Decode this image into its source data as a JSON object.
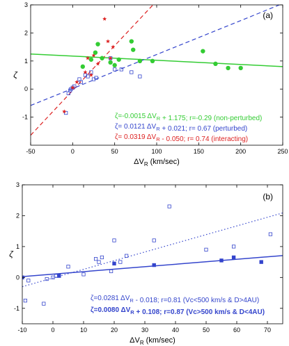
{
  "chart_data": [
    {
      "type": "scatter",
      "panel_label": "(a)",
      "xlabel": "ΔV",
      "xlabel_sub": "R",
      "xlabel_unit": " (km/sec)",
      "ylabel": "ζ",
      "xlim": [
        -50,
        250
      ],
      "ylim": [
        -2,
        3
      ],
      "xticks": [
        -50,
        0,
        50,
        100,
        150,
        200,
        250
      ],
      "yticks": [
        -1,
        0,
        1,
        2,
        3
      ],
      "series": [
        {
          "marker": "open-square",
          "color": "#3344cc",
          "points": [
            [
              -8,
              -0.85
            ],
            [
              -5,
              -0.15
            ],
            [
              -3,
              -0.05
            ],
            [
              -2,
              0.0
            ],
            [
              0,
              0.05
            ],
            [
              2,
              0.1
            ],
            [
              8,
              0.35
            ],
            [
              10,
              0.25
            ],
            [
              15,
              0.5
            ],
            [
              18,
              0.45
            ],
            [
              22,
              0.6
            ],
            [
              25,
              0.35
            ],
            [
              28,
              0.4
            ],
            [
              45,
              1.1
            ],
            [
              50,
              0.7
            ],
            [
              58,
              0.7
            ],
            [
              70,
              0.6
            ],
            [
              80,
              0.45
            ]
          ]
        },
        {
          "marker": "filled-star",
          "color": "#dd2222",
          "points": [
            [
              -10,
              -0.8
            ],
            [
              0,
              0.05
            ],
            [
              5,
              0.25
            ],
            [
              15,
              0.6
            ],
            [
              18,
              1.1
            ],
            [
              22,
              0.5
            ],
            [
              25,
              1.2
            ],
            [
              30,
              0.9
            ],
            [
              38,
              2.5
            ],
            [
              42,
              1.7
            ],
            [
              45,
              1.1
            ],
            [
              48,
              1.5
            ],
            [
              70,
              3.2
            ]
          ]
        },
        {
          "marker": "filled-circle",
          "color": "#33cc33",
          "points": [
            [
              12,
              0.8
            ],
            [
              22,
              1.05
            ],
            [
              27,
              1.3
            ],
            [
              30,
              1.6
            ],
            [
              35,
              1.1
            ],
            [
              45,
              0.95
            ],
            [
              50,
              0.85
            ],
            [
              55,
              1.05
            ],
            [
              70,
              1.7
            ],
            [
              72,
              1.4
            ],
            [
              80,
              1.0
            ],
            [
              95,
              1.0
            ],
            [
              155,
              1.35
            ],
            [
              170,
              0.9
            ],
            [
              185,
              0.75
            ],
            [
              200,
              0.75
            ]
          ]
        }
      ],
      "fits": [
        {
          "color": "#33cc33",
          "dash": false,
          "slope": -0.0015,
          "intercept": 1.175
        },
        {
          "color": "#3344cc",
          "dash": true,
          "slope": 0.0121,
          "intercept": 0.021
        },
        {
          "color": "#dd2222",
          "dash": true,
          "slope": 0.0319,
          "intercept": -0.05
        }
      ],
      "annotations": [
        {
          "color": "#33cc33",
          "bold": false,
          "text": "ζ=-0.0015 ΔV_R + 1.175; r=-0.29 (non-perturbed)"
        },
        {
          "color": "#3344cc",
          "bold": false,
          "text": "ζ= 0.0121 ΔV_R + 0.021; r= 0.67 (perturbed)"
        },
        {
          "color": "#dd2222",
          "bold": false,
          "text": "ζ= 0.0319 ΔV_R - 0.050; r= 0.74 (interacting)"
        }
      ]
    },
    {
      "type": "scatter",
      "panel_label": "(b)",
      "xlabel": "ΔV",
      "xlabel_sub": "R",
      "xlabel_unit": " (km/sec)",
      "ylabel": "ζ",
      "xlim": [
        -10,
        75
      ],
      "ylim": [
        -1.5,
        3
      ],
      "xticks": [
        -10,
        0,
        10,
        20,
        30,
        40,
        50,
        60,
        70
      ],
      "yticks": [
        -1,
        0,
        1,
        2,
        3
      ],
      "series": [
        {
          "marker": "open-square",
          "color": "#3344cc",
          "points": [
            [
              -9,
              -0.75
            ],
            [
              -8,
              -0.1
            ],
            [
              -3,
              -0.85
            ],
            [
              -2,
              -0.05
            ],
            [
              0,
              0.0
            ],
            [
              1,
              0.05
            ],
            [
              5,
              0.35
            ],
            [
              10,
              0.1
            ],
            [
              14,
              0.6
            ],
            [
              15,
              0.5
            ],
            [
              16,
              0.65
            ],
            [
              19,
              0.2
            ],
            [
              20,
              1.2
            ],
            [
              22,
              0.5
            ],
            [
              24,
              0.7
            ],
            [
              33,
              1.2
            ],
            [
              38,
              2.3
            ],
            [
              50,
              0.9
            ],
            [
              59,
              1.0
            ],
            [
              71,
              1.4
            ]
          ]
        },
        {
          "marker": "filled-square",
          "color": "#3344cc",
          "points": [
            [
              -10,
              0.0
            ],
            [
              2,
              0.05
            ],
            [
              20,
              0.45
            ],
            [
              33,
              0.4
            ],
            [
              55,
              0.55
            ],
            [
              59,
              0.65
            ],
            [
              68,
              0.5
            ]
          ]
        }
      ],
      "fits": [
        {
          "color": "#3344cc",
          "dash": "dot",
          "slope": 0.0281,
          "intercept": -0.018
        },
        {
          "color": "#3344cc",
          "dash": false,
          "slope": 0.008,
          "intercept": 0.108
        }
      ],
      "annotations": [
        {
          "color": "#3344cc",
          "bold": false,
          "text": "ζ=0.0281 ΔV_R - 0.018; r=0.81 (Vc<500 km/s & D>4AU)"
        },
        {
          "color": "#3344cc",
          "bold": true,
          "text": "ζ=0.0080 ΔV_R + 0.108; r=0.87 (Vc>500 km/s & D<4AU)"
        }
      ]
    }
  ]
}
